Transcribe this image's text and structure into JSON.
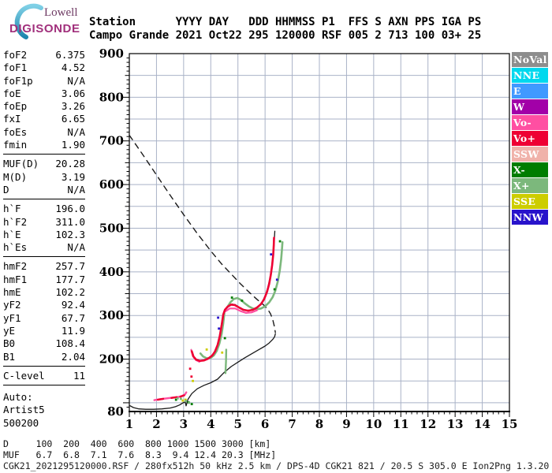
{
  "logo": {
    "line1": "Lowell",
    "line2": "DIGISONDE"
  },
  "header": {
    "line1": "Station      YYYY DAY   DDD HHMMSS P1  FFS S AXN PPS IGA PS",
    "line2": "Campo Grande 2021 Oct22 295 120000 RSF 005 2 713 100 03+ 25"
  },
  "params": {
    "groups": [
      {
        "rows": [
          [
            "foF2",
            "6.375"
          ],
          [
            "foF1",
            "4.52"
          ],
          [
            "foF1p",
            "N/A"
          ],
          [
            "foE",
            "3.06"
          ],
          [
            "foEp",
            "3.26"
          ],
          [
            "fxI",
            "6.65"
          ],
          [
            "foEs",
            "N/A"
          ],
          [
            "fmin",
            "1.90"
          ]
        ]
      },
      {
        "rows": [
          [
            "MUF(D)",
            "20.28"
          ],
          [
            "M(D)",
            "3.19"
          ],
          [
            "D",
            "N/A"
          ]
        ]
      },
      {
        "rows": [
          [
            "h`F",
            "196.0"
          ],
          [
            "h`F2",
            "311.0"
          ],
          [
            "h`E",
            "102.3"
          ],
          [
            "h`Es",
            "N/A"
          ]
        ]
      },
      {
        "rows": [
          [
            "hmF2",
            "257.7"
          ],
          [
            "hmF1",
            "177.7"
          ],
          [
            "hmE",
            "102.2"
          ],
          [
            "yF2",
            "92.4"
          ],
          [
            "yF1",
            "67.7"
          ],
          [
            "yE",
            "11.9"
          ],
          [
            "B0",
            "108.4"
          ],
          [
            "B1",
            "2.04"
          ]
        ]
      },
      {
        "rows": [
          [
            "C-level",
            "11"
          ]
        ]
      }
    ],
    "footer_lines": [
      "Auto:",
      "Artist5",
      "500200"
    ]
  },
  "legend": {
    "items": [
      {
        "label": "NoVal",
        "color": "#8d8d8d"
      },
      {
        "label": "NNE",
        "color": "#00d8ee"
      },
      {
        "label": "E",
        "color": "#4099ff"
      },
      {
        "label": "W",
        "color": "#a200a8"
      },
      {
        "label": "Vo-",
        "color": "#ff4fa2"
      },
      {
        "label": "Vo+",
        "color": "#ee0033"
      },
      {
        "label": "SSW",
        "color": "#f0b2aa"
      },
      {
        "label": "X-",
        "color": "#007d00"
      },
      {
        "label": "X+",
        "color": "#7cb87c"
      },
      {
        "label": "SSE",
        "color": "#cdcd00"
      },
      {
        "label": "NNW",
        "color": "#2813cb"
      }
    ]
  },
  "bottom": {
    "d_line": "D     100  200  400  600  800 1000 1500 3000 [km]",
    "muf_line": "MUF   6.7  6.8  7.1  7.6  8.3  9.4 12.4 20.3 [MHz]",
    "status_line": "CGK21_2021295120000.RSF / 280fx512h 50 kHz 2.5 km / DPS-4D CGK21 821 / 20.5 S 305.0 E Ion2Png 1.3.20"
  },
  "chart_data": {
    "type": "line",
    "title": "",
    "xlabel": "",
    "ylabel": "",
    "xlim": [
      1,
      15
    ],
    "ylim": [
      80,
      900
    ],
    "grid": true,
    "x_grid_step": 1,
    "y_grid_step": 50,
    "x_minor_step": 0.2,
    "y_minor_step": 10,
    "x_tick_labels": [
      1,
      2,
      3,
      4,
      5,
      6,
      7,
      8,
      9,
      10,
      11,
      12,
      13,
      14,
      15
    ],
    "y_tick_labels": [
      900,
      800,
      700,
      600,
      500,
      400,
      300,
      200,
      80
    ],
    "grid_color": "#a9b2c7",
    "series": [
      {
        "name": "muf-transmission-curve",
        "style": "dashed",
        "color": "#1a1a1a",
        "width": 1.4,
        "points": [
          [
            1,
            713
          ],
          [
            1.5,
            668
          ],
          [
            2,
            622
          ],
          [
            2.5,
            576
          ],
          [
            3,
            531
          ],
          [
            3.5,
            488
          ],
          [
            4,
            448
          ],
          [
            4.4,
            418
          ],
          [
            4.8,
            392
          ],
          [
            5.1,
            372
          ],
          [
            5.4,
            354
          ],
          [
            5.7,
            337
          ],
          [
            5.95,
            324
          ],
          [
            6.1,
            314
          ],
          [
            6.2,
            304
          ],
          [
            6.28,
            291
          ],
          [
            6.34,
            276
          ],
          [
            6.38,
            261
          ]
        ]
      },
      {
        "name": "electron-density-profile",
        "style": "solid",
        "color": "#1a1a1a",
        "width": 1.3,
        "points": [
          [
            1,
            94
          ],
          [
            1.15,
            89
          ],
          [
            1.35,
            86
          ],
          [
            1.6,
            85
          ],
          [
            1.9,
            85
          ],
          [
            2.2,
            86
          ],
          [
            2.5,
            88
          ],
          [
            2.7,
            91
          ],
          [
            2.85,
            95
          ],
          [
            2.98,
            100
          ],
          [
            3.06,
            102
          ],
          [
            3.09,
            93
          ],
          [
            3.16,
            108
          ],
          [
            3.3,
            121
          ],
          [
            3.5,
            132
          ],
          [
            3.75,
            140
          ],
          [
            4,
            146
          ],
          [
            4.25,
            154
          ],
          [
            4.5,
            170
          ],
          [
            4.75,
            183
          ],
          [
            5,
            193
          ],
          [
            5.25,
            203
          ],
          [
            5.5,
            212
          ],
          [
            5.75,
            221
          ],
          [
            6,
            230
          ],
          [
            6.15,
            237
          ],
          [
            6.28,
            245
          ],
          [
            6.35,
            251
          ],
          [
            6.38,
            258
          ]
        ]
      },
      {
        "name": "o-trace-fit",
        "style": "solid",
        "color": "#1a1a1a",
        "width": 1.3,
        "points": [
          [
            3.28,
            222
          ],
          [
            3.33,
            208
          ],
          [
            3.42,
            200
          ],
          [
            3.55,
            196
          ],
          [
            3.7,
            196
          ],
          [
            3.85,
            199
          ],
          [
            4,
            205
          ],
          [
            4.1,
            212
          ],
          [
            4.2,
            224
          ],
          [
            4.28,
            240
          ],
          [
            4.35,
            262
          ],
          [
            4.42,
            290
          ],
          [
            4.48,
            308
          ],
          [
            4.55,
            316
          ],
          [
            4.65,
            322
          ],
          [
            4.78,
            326
          ],
          [
            4.9,
            325
          ],
          [
            5.05,
            319
          ],
          [
            5.2,
            314
          ],
          [
            5.35,
            312
          ],
          [
            5.5,
            313
          ],
          [
            5.65,
            317
          ],
          [
            5.8,
            324
          ],
          [
            5.92,
            334
          ],
          [
            6.02,
            348
          ],
          [
            6.1,
            364
          ],
          [
            6.17,
            383
          ],
          [
            6.23,
            405
          ],
          [
            6.28,
            428
          ],
          [
            6.32,
            452
          ],
          [
            6.34,
            472
          ],
          [
            6.36,
            493
          ]
        ]
      },
      {
        "name": "x-trace-lower",
        "style": "solid",
        "color": "#7cb87c",
        "width": 2.6,
        "points": [
          [
            3.62,
            213
          ],
          [
            3.72,
            206
          ],
          [
            3.85,
            202
          ],
          [
            4,
            203
          ],
          [
            4.12,
            209
          ],
          [
            4.22,
            219
          ],
          [
            4.32,
            236
          ],
          [
            4.4,
            258
          ],
          [
            4.46,
            282
          ],
          [
            4.5,
            305
          ]
        ]
      },
      {
        "name": "x-trace-riser",
        "style": "solid",
        "color": "#7cb87c",
        "width": 2.4,
        "points": [
          [
            4.54,
            168
          ],
          [
            4.56,
            195
          ],
          [
            4.57,
            222
          ]
        ]
      },
      {
        "name": "x-trace-upper",
        "style": "solid",
        "color": "#7cb87c",
        "width": 2.6,
        "points": [
          [
            4.6,
            318
          ],
          [
            4.72,
            330
          ],
          [
            4.85,
            338
          ],
          [
            4.98,
            340
          ],
          [
            5.1,
            336
          ],
          [
            5.25,
            328
          ],
          [
            5.4,
            321
          ],
          [
            5.55,
            316
          ],
          [
            5.7,
            314
          ],
          [
            5.85,
            316
          ],
          [
            6,
            321
          ],
          [
            6.15,
            330
          ],
          [
            6.28,
            342
          ],
          [
            6.38,
            357
          ],
          [
            6.47,
            378
          ],
          [
            6.54,
            402
          ],
          [
            6.59,
            428
          ],
          [
            6.62,
            450
          ],
          [
            6.64,
            468
          ]
        ]
      },
      {
        "name": "pink-u-left-arm",
        "style": "solid",
        "color": "#ff4fa2",
        "width": 2.2,
        "points": [
          [
            3.28,
            221
          ],
          [
            3.34,
            207
          ],
          [
            3.45,
            198
          ],
          [
            3.58,
            194
          ]
        ]
      },
      {
        "name": "pink-f-underline",
        "style": "solid",
        "color": "#ff4fa2",
        "width": 2.2,
        "points": [
          [
            4.5,
            308
          ],
          [
            4.7,
            316
          ],
          [
            4.9,
            316
          ],
          [
            5.1,
            310
          ],
          [
            5.3,
            306
          ],
          [
            5.5,
            307
          ],
          [
            5.7,
            312
          ]
        ]
      },
      {
        "name": "o-trace-echo",
        "style": "solid",
        "color": "#ee0033",
        "width": 2.6,
        "points": [
          [
            3.3,
            218
          ],
          [
            3.36,
            206
          ],
          [
            3.46,
            199
          ],
          [
            3.6,
            196
          ],
          [
            3.75,
            197
          ],
          [
            3.9,
            201
          ],
          [
            4.05,
            208
          ],
          [
            4.15,
            217
          ],
          [
            4.25,
            232
          ],
          [
            4.33,
            252
          ],
          [
            4.4,
            278
          ],
          [
            4.46,
            302
          ],
          [
            4.52,
            313
          ],
          [
            4.62,
            320
          ],
          [
            4.75,
            325
          ],
          [
            4.88,
            324
          ],
          [
            5.05,
            318
          ],
          [
            5.2,
            313
          ],
          [
            5.38,
            311
          ],
          [
            5.55,
            313
          ],
          [
            5.7,
            318
          ],
          [
            5.85,
            326
          ],
          [
            5.97,
            338
          ],
          [
            6.07,
            354
          ],
          [
            6.15,
            372
          ],
          [
            6.21,
            393
          ],
          [
            6.26,
            415
          ],
          [
            6.3,
            440
          ],
          [
            6.32,
            462
          ],
          [
            6.33,
            478
          ]
        ]
      },
      {
        "name": "e-trace-pink",
        "style": "solid",
        "color": "#ff4fa2",
        "width": 2.4,
        "points": [
          [
            1.92,
            106
          ],
          [
            2.1,
            108
          ],
          [
            2.35,
            110
          ],
          [
            2.6,
            112
          ],
          [
            2.8,
            113
          ],
          [
            2.95,
            116
          ],
          [
            3.05,
            119
          ],
          [
            3.1,
            124
          ]
        ]
      },
      {
        "name": "e-trace-red-seg1",
        "style": "solid",
        "color": "#ee0033",
        "width": 2.4,
        "points": [
          [
            2.05,
            107
          ],
          [
            2.25,
            109
          ]
        ]
      },
      {
        "name": "e-trace-red-seg2",
        "style": "solid",
        "color": "#ee0033",
        "width": 2.4,
        "points": [
          [
            2.55,
            111
          ],
          [
            2.75,
            113
          ]
        ]
      },
      {
        "name": "e-trace-red-seg3",
        "style": "solid",
        "color": "#ee0033",
        "width": 2.4,
        "points": [
          [
            2.88,
            114
          ],
          [
            3.02,
            117
          ]
        ]
      }
    ],
    "scatter": [
      {
        "name": "red-dots",
        "color": "#ee0033",
        "points": [
          [
            3.24,
            178
          ],
          [
            3.29,
            160
          ]
        ]
      },
      {
        "name": "sse-yellow-dots",
        "color": "#cdcd00",
        "points": [
          [
            2.97,
            105
          ],
          [
            3.07,
            107
          ],
          [
            3.34,
            150
          ],
          [
            3.85,
            222
          ],
          [
            4.42,
            215
          ]
        ]
      },
      {
        "name": "x-minus-dots",
        "color": "#007d00",
        "points": [
          [
            2.72,
            107
          ],
          [
            3.18,
            101
          ],
          [
            3.3,
            97
          ],
          [
            4.52,
            248
          ],
          [
            4.78,
            341
          ],
          [
            5.15,
            334
          ],
          [
            6.35,
            360
          ],
          [
            6.55,
            470
          ]
        ]
      },
      {
        "name": "nnw-blue-dots",
        "color": "#2813cb",
        "points": [
          [
            4.27,
            295
          ],
          [
            4.3,
            270
          ],
          [
            6.22,
            440
          ],
          [
            6.44,
            382
          ]
        ]
      },
      {
        "name": "x-plus-e-dots",
        "color": "#7cb87c",
        "points": [
          [
            2.78,
            110
          ],
          [
            2.9,
            109
          ],
          [
            3.08,
            104
          ],
          [
            3.2,
            100
          ]
        ]
      }
    ]
  }
}
